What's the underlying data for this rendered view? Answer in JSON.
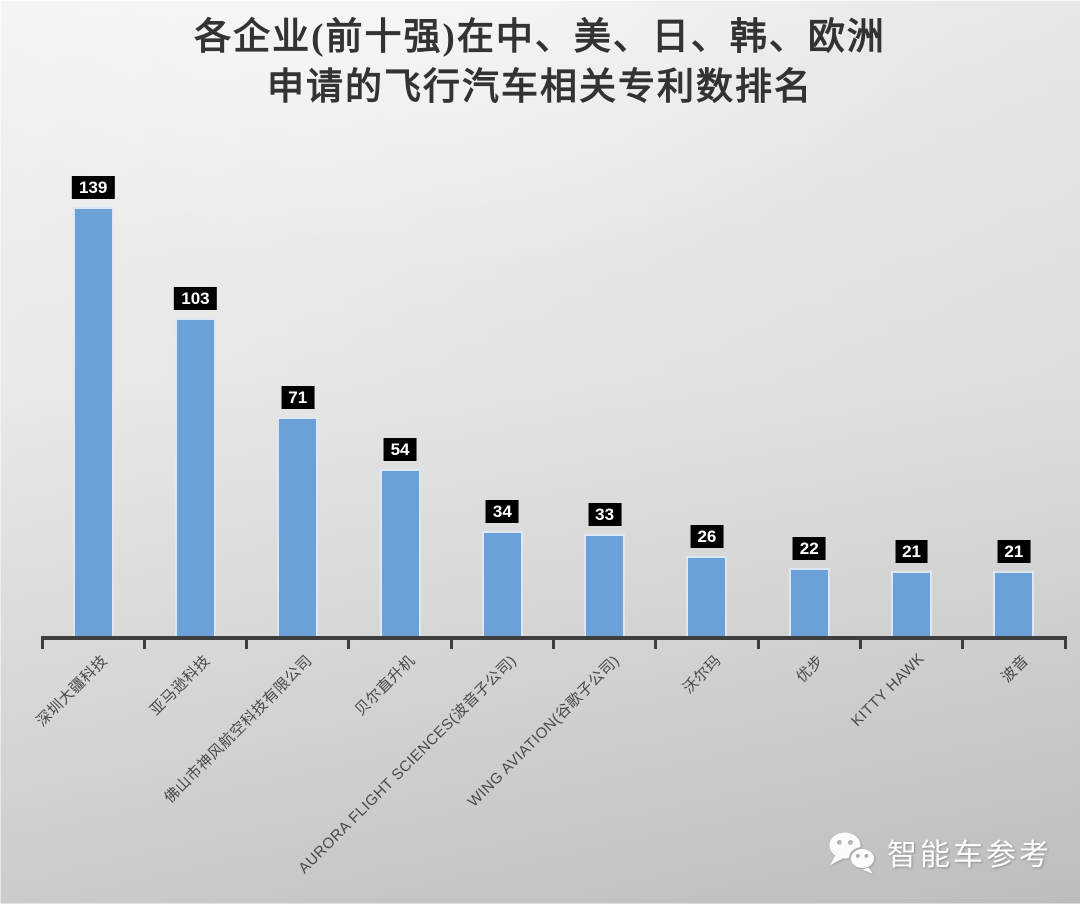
{
  "chart": {
    "title_line1": "各企业(前十强)在中、美、日、韩、欧洲",
    "title_line2": "申请的飞行汽车相关专利数排名"
  },
  "watermark": {
    "icon": "wechat-icon",
    "text": "智能车参考"
  },
  "colors": {
    "bar": "#6BA1D8",
    "bar_border": "#DDE8F4",
    "value_box_bg": "#000000",
    "value_text": "#FFFFFF",
    "axis": "#3E3E3E",
    "title_text": "#333333",
    "xlabel_text": "#484848",
    "watermark_text": "#FFFFFF",
    "background_top": "#EFEFEF",
    "background_bottom": "#C7C7C7"
  },
  "chart_data": {
    "type": "bar",
    "title": "各企业(前十强)在中、美、日、韩、欧洲申请的飞行汽车相关专利数排名",
    "categories": [
      "深圳大疆科技",
      "亚马逊科技",
      "佛山市神风航空科技有限公司",
      "贝尔直升机",
      "AURORA FLIGHT SCIENCES(波音子公司)",
      "WING AVIATION(谷歌子公司)",
      "沃尔玛",
      "优步",
      "KITTY HAWK",
      "波音"
    ],
    "values": [
      139,
      103,
      71,
      54,
      34,
      33,
      26,
      22,
      21,
      21
    ],
    "xlabel": "",
    "ylabel": "",
    "ylim": [
      0,
      150
    ],
    "grid": false,
    "legend": "none",
    "y_axis_shown": false,
    "value_labels": "above bars, white bold text in black boxes",
    "x_tick_label_rotation_deg": 45,
    "bar_color": "#6BA1D8"
  }
}
